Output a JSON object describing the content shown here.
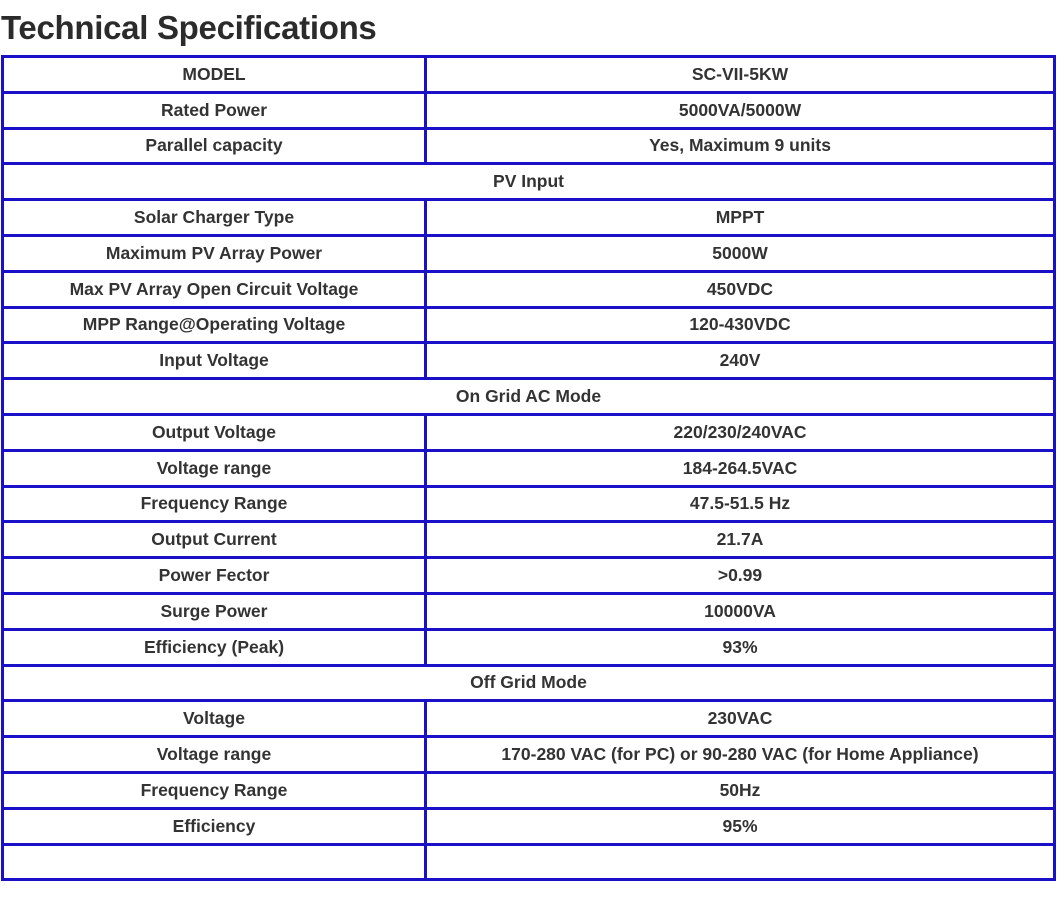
{
  "title": "Technical Specifications",
  "rows": [
    {
      "label": "MODEL",
      "value": "SC-VII-5KW"
    },
    {
      "label": "Rated Power",
      "value": "5000VA/5000W"
    },
    {
      "label": "Parallel capacity",
      "value": "Yes, Maximum 9 units"
    },
    {
      "section": "PV Input"
    },
    {
      "label": "Solar Charger Type",
      "value": "MPPT"
    },
    {
      "label": "Maximum PV Array Power",
      "value": "5000W"
    },
    {
      "label": "Max PV Array Open Circuit Voltage",
      "value": "450VDC"
    },
    {
      "label": "MPP Range@Operating Voltage",
      "value": "120-430VDC"
    },
    {
      "label": "Input Voltage",
      "value": "240V"
    },
    {
      "section": "On Grid AC Mode"
    },
    {
      "label": "Output Voltage",
      "value": "220/230/240VAC"
    },
    {
      "label": "Voltage range",
      "value": "184-264.5VAC"
    },
    {
      "label": "Frequency Range",
      "value": "47.5-51.5 Hz"
    },
    {
      "label": "Output Current",
      "value": "21.7A"
    },
    {
      "label": "Power Fector",
      "value": ">0.99"
    },
    {
      "label": "Surge Power",
      "value": "10000VA"
    },
    {
      "label": "Efficiency (Peak)",
      "value": "93%"
    },
    {
      "section": "Off Grid Mode"
    },
    {
      "label": "Voltage",
      "value": "230VAC"
    },
    {
      "label": "Voltage range",
      "value": "170-280 VAC (for PC)  or 90-280 VAC (for Home Appliance)"
    },
    {
      "label": "Frequency Range",
      "value": "50Hz"
    },
    {
      "label": "Efficiency",
      "value": "95%"
    }
  ]
}
